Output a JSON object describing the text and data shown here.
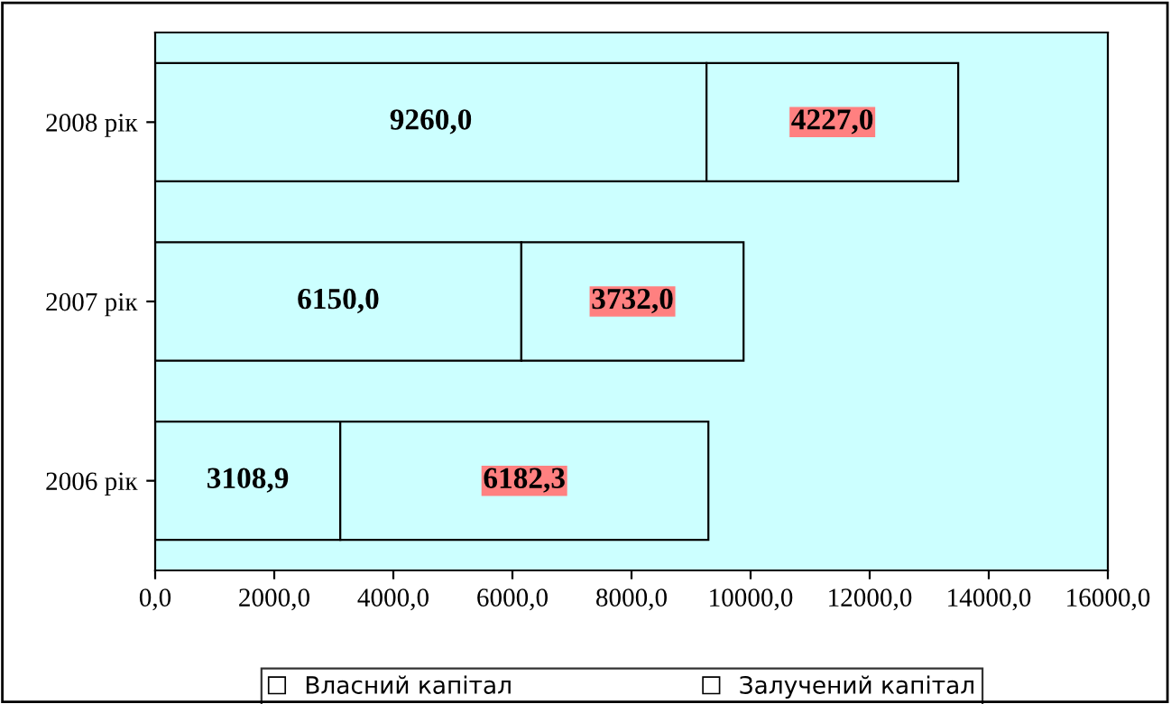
{
  "chart_data": {
    "type": "bar",
    "orientation": "horizontal",
    "stacked": true,
    "categories": [
      "2008 рік",
      "2007 рік",
      "2006 рік"
    ],
    "series": [
      {
        "name": "Власний капітал",
        "color": "#ccffff",
        "values": [
          9260.0,
          6150.0,
          3108.9
        ],
        "value_labels": [
          "9260,0",
          "6150,0",
          "3108,9"
        ]
      },
      {
        "name": "Залучений капітал",
        "color": "#ccffff",
        "values": [
          4227.0,
          3732.0,
          6182.3
        ],
        "value_labels": [
          "4227,0",
          "3732,0",
          "6182,3"
        ]
      }
    ],
    "xlim": [
      0,
      16000
    ],
    "xticks": [
      {
        "value": 0,
        "label": "0,0"
      },
      {
        "value": 2000,
        "label": "2000,0"
      },
      {
        "value": 4000,
        "label": "4000,0"
      },
      {
        "value": 6000,
        "label": "6000,0"
      },
      {
        "value": 8000,
        "label": "8000,0"
      },
      {
        "value": 10000,
        "label": "10000,0"
      },
      {
        "value": 12000,
        "label": "12000,0"
      },
      {
        "value": 14000,
        "label": "14000,0"
      },
      {
        "value": 16000,
        "label": "16000,0"
      }
    ],
    "grid": false,
    "legend": "bottom"
  }
}
